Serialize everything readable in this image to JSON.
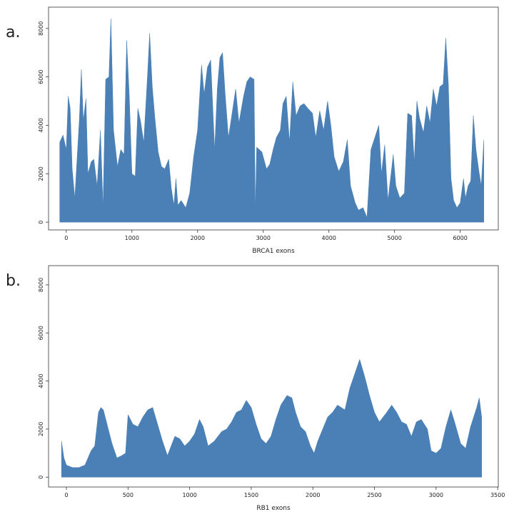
{
  "chart_data": [
    {
      "type": "area",
      "panel_label": "a.",
      "xlabel": "BRCA1 exons",
      "color": "#4a80b5",
      "x": [
        -100,
        -50,
        0,
        30,
        60,
        90,
        130,
        200,
        230,
        260,
        300,
        330,
        380,
        420,
        470,
        520,
        560,
        600,
        650,
        680,
        720,
        780,
        830,
        880,
        920,
        960,
        1000,
        1050,
        1090,
        1130,
        1180,
        1240,
        1270,
        1310,
        1350,
        1400,
        1450,
        1500,
        1560,
        1600,
        1640,
        1670,
        1700,
        1750,
        1820,
        1880,
        1940,
        2000,
        2060,
        2100,
        2150,
        2200,
        2260,
        2300,
        2340,
        2380,
        2420,
        2470,
        2520,
        2580,
        2630,
        2700,
        2750,
        2800,
        2860,
        2880,
        2900,
        2980,
        3050,
        3100,
        3150,
        3200,
        3260,
        3300,
        3350,
        3400,
        3450,
        3500,
        3560,
        3620,
        3680,
        3750,
        3800,
        3860,
        3920,
        3980,
        4030,
        4080,
        4150,
        4220,
        4280,
        4330,
        4400,
        4450,
        4520,
        4580,
        4640,
        4700,
        4760,
        4800,
        4850,
        4900,
        4980,
        5020,
        5080,
        5150,
        5200,
        5260,
        5300,
        5340,
        5380,
        5440,
        5490,
        5540,
        5590,
        5640,
        5690,
        5740,
        5780,
        5820,
        5860,
        5900,
        5950,
        6000,
        6050,
        6080,
        6120,
        6160,
        6200,
        6240,
        6280,
        6320,
        6360
      ],
      "values": [
        3300,
        3600,
        3000,
        5200,
        4700,
        2200,
        1000,
        4300,
        6300,
        4200,
        5100,
        2000,
        2500,
        2600,
        1500,
        3800,
        650,
        5900,
        6000,
        8400,
        3800,
        2300,
        3000,
        2800,
        7500,
        5200,
        2000,
        1900,
        4700,
        4200,
        3300,
        6200,
        7800,
        5600,
        4300,
        2900,
        2300,
        2200,
        2600,
        1400,
        700,
        1800,
        700,
        900,
        600,
        1200,
        2700,
        3800,
        6500,
        5300,
        6400,
        6700,
        3000,
        5500,
        6800,
        7000,
        5300,
        3500,
        4400,
        5500,
        4100,
        5200,
        5800,
        6000,
        5900,
        500,
        3100,
        2900,
        2200,
        2400,
        3000,
        3500,
        3800,
        4900,
        5200,
        3300,
        5800,
        4400,
        4800,
        4900,
        4700,
        4500,
        3500,
        4600,
        3800,
        5000,
        4000,
        2700,
        2100,
        2500,
        3400,
        1500,
        800,
        500,
        600,
        200,
        3000,
        3500,
        4000,
        2000,
        3200,
        900,
        2800,
        1500,
        1000,
        1200,
        4500,
        4400,
        2500,
        5000,
        4300,
        3700,
        4800,
        4100,
        5500,
        4800,
        5600,
        5700,
        7600,
        5700,
        1800,
        900,
        600,
        800,
        1800,
        1000,
        1500,
        1700,
        4400,
        3000,
        2200,
        1500,
        3400
      ],
      "xlim": [
        -270,
        6580
      ],
      "ylim": [
        -320,
        8880
      ],
      "xticks": [
        0,
        1000,
        2000,
        3000,
        4000,
        5000,
        6000
      ],
      "yticks": [
        0,
        2000,
        4000,
        6000,
        8000
      ]
    },
    {
      "type": "area",
      "panel_label": "b.",
      "xlabel": "RB1 exons",
      "color": "#4a80b5",
      "x": [
        -40,
        -20,
        0,
        50,
        100,
        150,
        200,
        230,
        260,
        280,
        300,
        330,
        370,
        410,
        450,
        480,
        500,
        540,
        580,
        620,
        660,
        700,
        740,
        780,
        820,
        850,
        880,
        920,
        960,
        1000,
        1040,
        1080,
        1110,
        1150,
        1200,
        1260,
        1300,
        1340,
        1380,
        1420,
        1460,
        1500,
        1540,
        1580,
        1620,
        1660,
        1700,
        1740,
        1790,
        1830,
        1860,
        1900,
        1940,
        1980,
        2010,
        2040,
        2080,
        2120,
        2160,
        2200,
        2260,
        2300,
        2340,
        2380,
        2420,
        2460,
        2500,
        2540,
        2600,
        2640,
        2680,
        2720,
        2760,
        2800,
        2840,
        2880,
        2930,
        2960,
        3000,
        3040,
        3080,
        3120,
        3150,
        3200,
        3240,
        3280,
        3330,
        3350,
        3370
      ],
      "values": [
        1500,
        800,
        500,
        400,
        400,
        500,
        1100,
        1300,
        2700,
        2900,
        2800,
        2200,
        1400,
        800,
        900,
        1000,
        2600,
        2200,
        2100,
        2500,
        2800,
        2900,
        2200,
        1500,
        900,
        1300,
        1700,
        1600,
        1300,
        1500,
        1800,
        2400,
        2100,
        1300,
        1500,
        1900,
        2000,
        2300,
        2700,
        2800,
        3200,
        2900,
        2200,
        1600,
        1400,
        1700,
        2400,
        3000,
        3400,
        3300,
        2700,
        2100,
        1900,
        1300,
        1000,
        1500,
        2000,
        2500,
        2700,
        3000,
        2800,
        3700,
        4300,
        4900,
        4200,
        3400,
        2700,
        2300,
        2700,
        3000,
        2700,
        2300,
        2200,
        1700,
        2300,
        2400,
        2000,
        1100,
        1000,
        1200,
        2100,
        2800,
        2300,
        1400,
        1200,
        2100,
        2900,
        3300,
        2500
      ],
      "xlim": [
        -145,
        3505
      ],
      "ylim": [
        -410,
        8800
      ],
      "xticks": [
        0,
        500,
        1000,
        1500,
        2000,
        2500,
        3000,
        3500
      ],
      "yticks": [
        0,
        2000,
        4000,
        6000,
        8000
      ]
    }
  ]
}
